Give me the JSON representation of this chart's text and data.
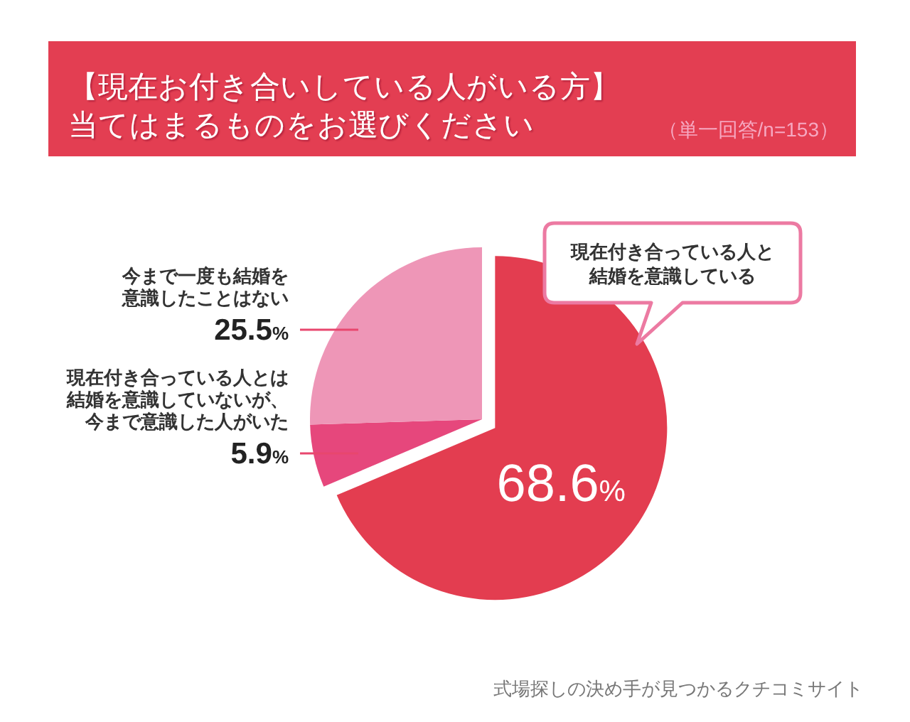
{
  "chart_data": {
    "type": "pie",
    "title": "【現在お付き合いしている人がいる方】当てはまるものをお選びください",
    "subtitle": "（単一回答/n=153）",
    "categories": [
      "現在付き合っている人と結婚を意識している",
      "現在付き合っている人とは結婚を意識していないが、今まで意識した人がいた",
      "今まで一度も結婚を意識したことはない"
    ],
    "values": [
      68.6,
      5.9,
      25.5
    ],
    "colors": [
      "#e33d50",
      "#e6477c",
      "#ee96b7"
    ],
    "value_labels": [
      "68.6%",
      "5.9%",
      "25.5%"
    ],
    "annotations": [
      "式場探しの決め手が見つかるクチコミサイト"
    ]
  }
}
